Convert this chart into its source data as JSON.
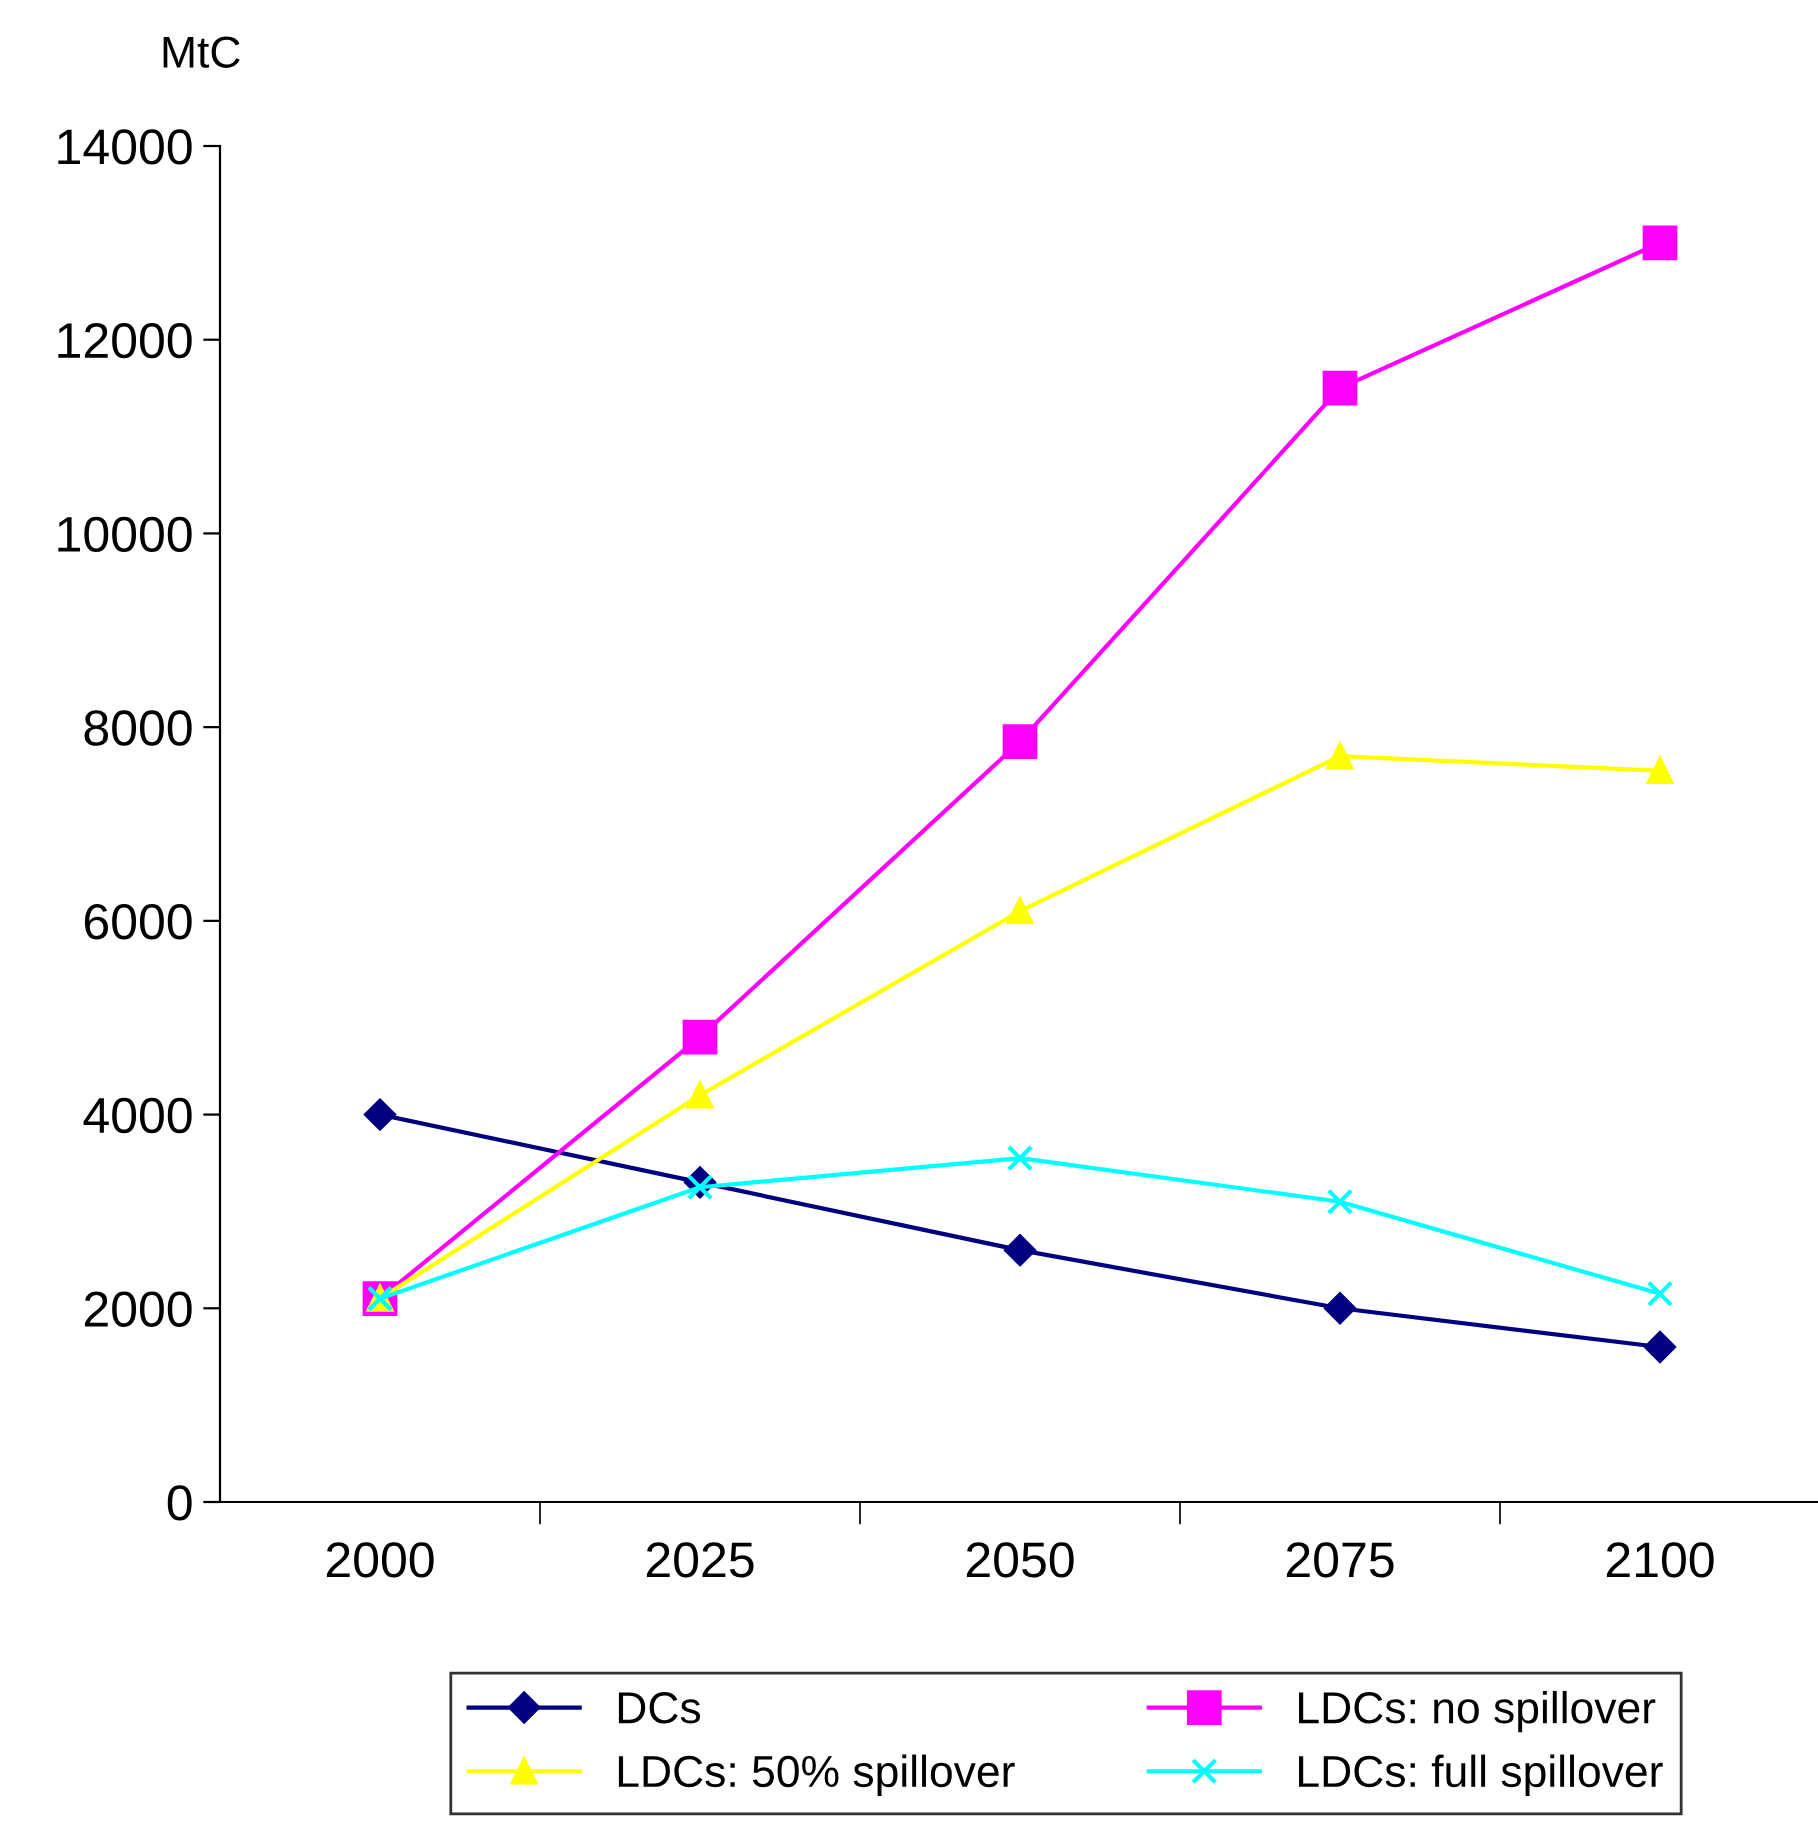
{
  "chart_data": {
    "type": "line",
    "ylabel": "MtC",
    "categories": [
      "2000",
      "2025",
      "2050",
      "2075",
      "2100"
    ],
    "series": [
      {
        "name": "DCs",
        "color": "#000080",
        "marker": "diamond",
        "values": [
          4000,
          3300,
          2600,
          2000,
          1600
        ]
      },
      {
        "name": "LDCs: no spillover",
        "color": "#ff00ff",
        "marker": "square",
        "values": [
          2100,
          4800,
          7850,
          11500,
          13000
        ]
      },
      {
        "name": "LDCs: 50% spillover",
        "color": "#ffff00",
        "marker": "triangle",
        "values": [
          2100,
          4200,
          6100,
          7700,
          7550
        ]
      },
      {
        "name": "LDCs: full spillover",
        "color": "#00ffff",
        "marker": "cross",
        "values": [
          2100,
          3250,
          3550,
          3100,
          2150
        ]
      }
    ],
    "ylim": [
      0,
      14000
    ],
    "yticks": [
      0,
      2000,
      4000,
      6000,
      8000,
      10000,
      12000,
      14000
    ],
    "grid": false,
    "legend": "bottom"
  }
}
